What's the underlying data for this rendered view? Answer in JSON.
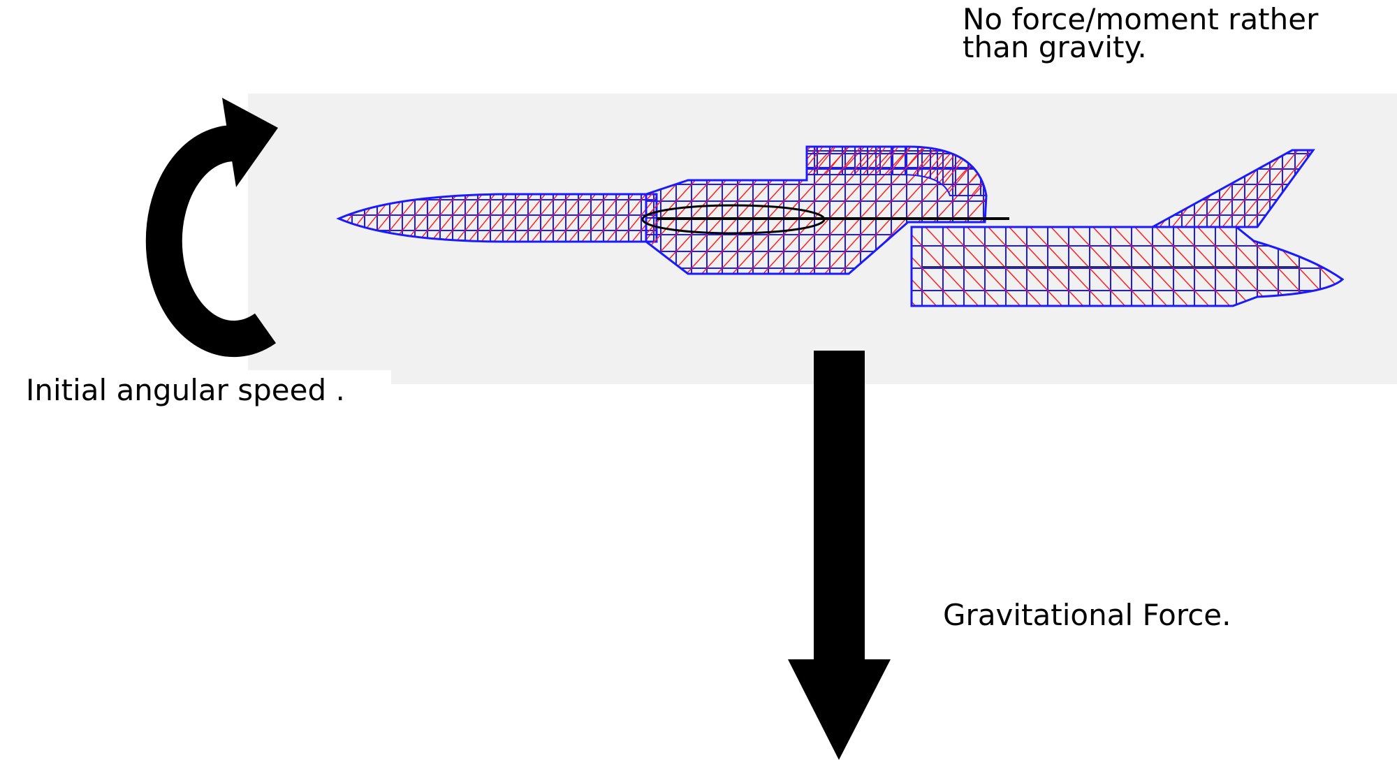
{
  "labels": {
    "note": "No force/moment rather\nthan gravity.",
    "angular_speed": "Initial angular speed .",
    "gravity": "Gravitational Force."
  },
  "colors": {
    "panel_background": "#f1f1f1",
    "mesh_outline": "#1a1aff",
    "mesh_diagonal": "#ff2020",
    "arrow": "#000000",
    "text": "#000000"
  },
  "icons": {
    "rotation_arrow": "curved-arrow-icon",
    "gravity_arrow": "down-arrow-icon"
  }
}
